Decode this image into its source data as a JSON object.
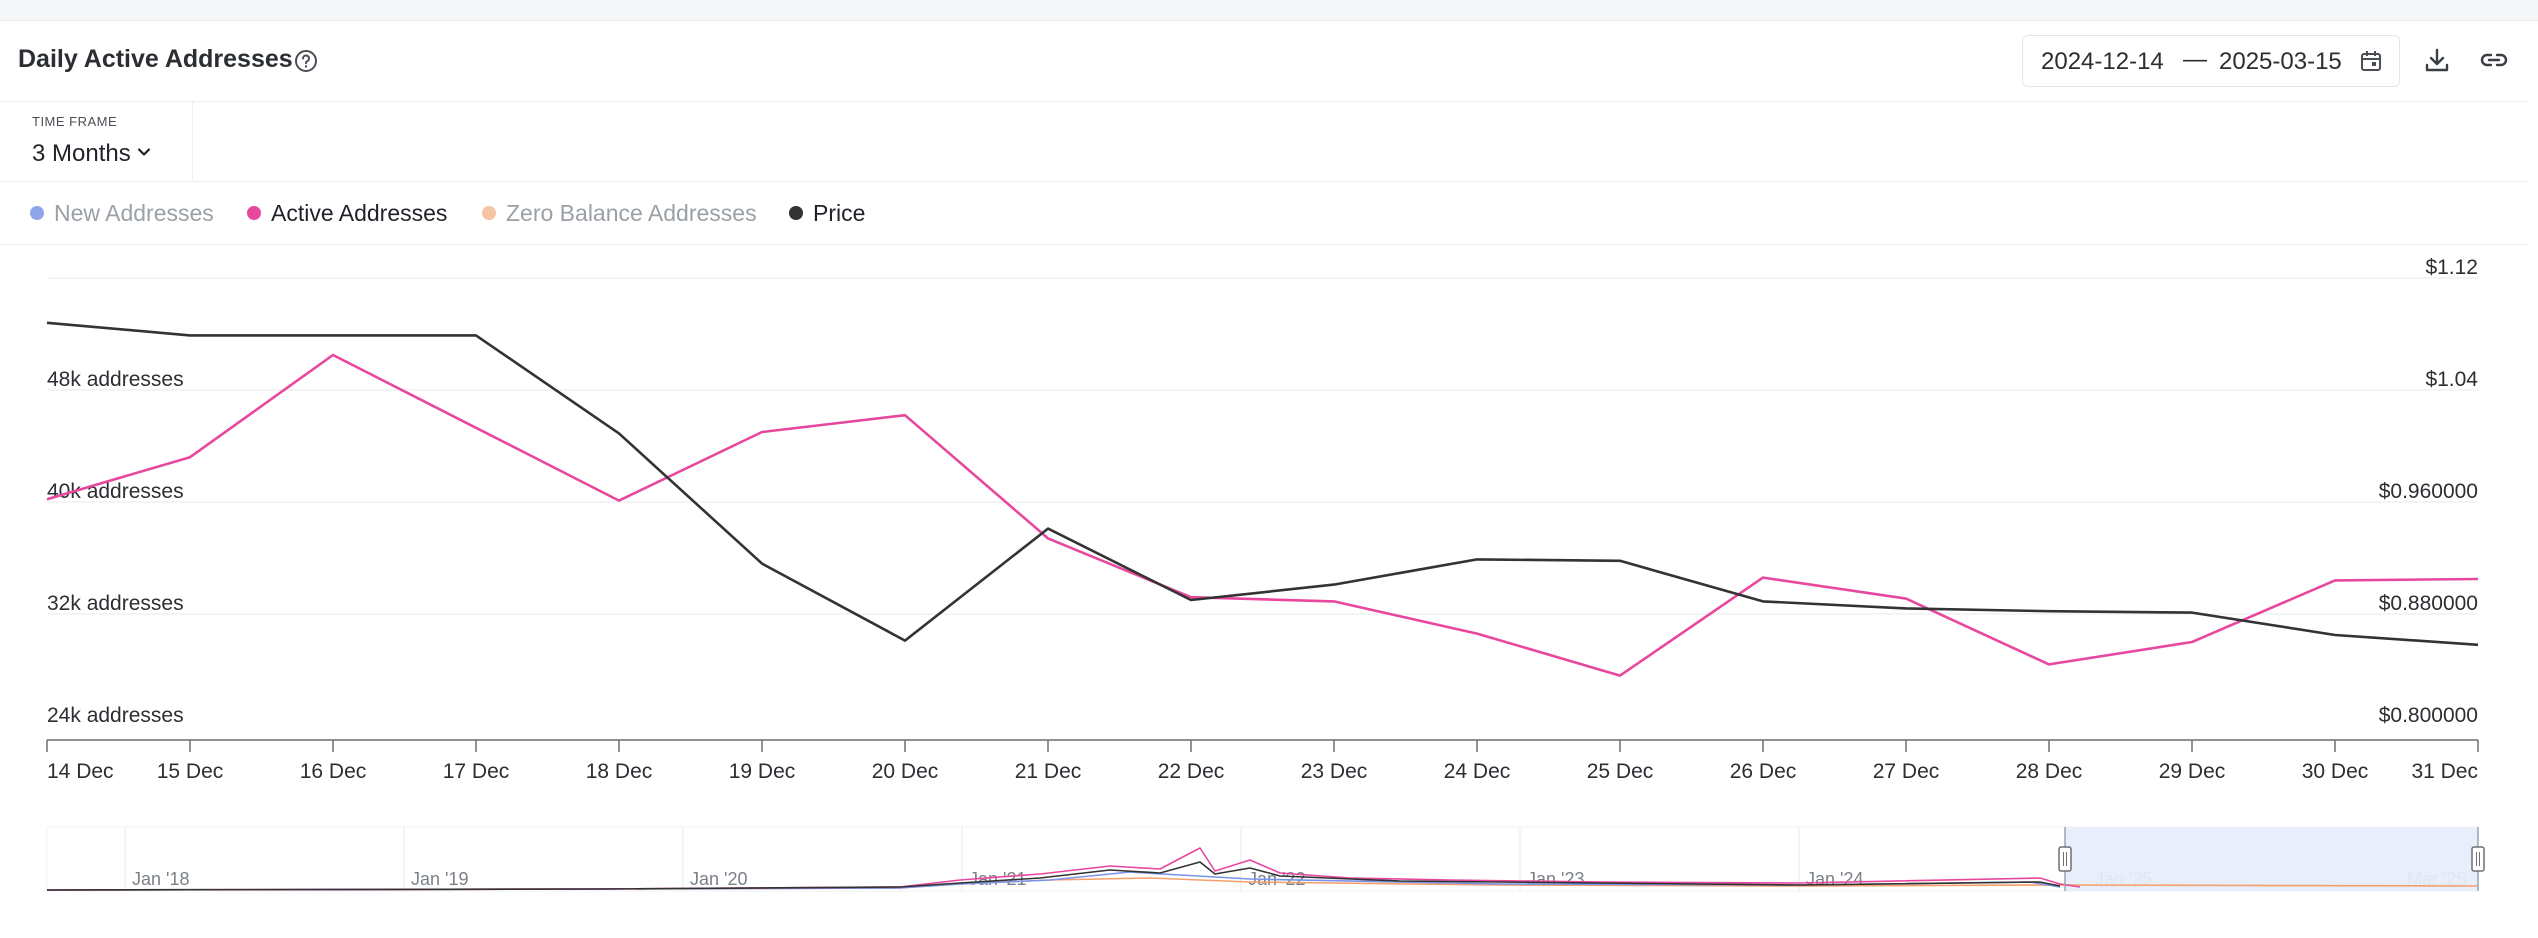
{
  "header": {
    "title": "Daily Active Addresses",
    "date_start": "2024-12-14",
    "date_separator": "—",
    "date_end": "2025-03-15"
  },
  "timeframe": {
    "label": "TIME FRAME",
    "selected": "3 Months"
  },
  "legend": [
    {
      "name": "New Addresses",
      "color": "#7b93e8",
      "active": false
    },
    {
      "name": "Active Addresses",
      "color": "#e8479e",
      "active": true
    },
    {
      "name": "Zero Balance Addresses",
      "color": "#f4b892",
      "active": false
    },
    {
      "name": "Price",
      "color": "#333333",
      "active": true
    }
  ],
  "chart_data": {
    "type": "line",
    "categories": [
      "14 Dec",
      "15 Dec",
      "16 Dec",
      "17 Dec",
      "18 Dec",
      "19 Dec",
      "20 Dec",
      "21 Dec",
      "22 Dec",
      "23 Dec",
      "24 Dec",
      "25 Dec",
      "26 Dec",
      "27 Dec",
      "28 Dec",
      "29 Dec",
      "30 Dec",
      "31 Dec"
    ],
    "left_axis": {
      "ticks": [
        24000,
        32000,
        40000,
        48000
      ],
      "tick_labels": [
        "24k addresses",
        "32k addresses",
        "40k addresses",
        "48k addresses"
      ],
      "range": [
        24000,
        56000
      ]
    },
    "right_axis": {
      "ticks": [
        0.8,
        0.88,
        0.96,
        1.04,
        1.12
      ],
      "tick_labels": [
        "$0.800000",
        "$0.880000",
        "$0.960000",
        "$1.04",
        "$1.12"
      ],
      "range": [
        0.8,
        1.12
      ]
    },
    "grid": true,
    "series": [
      {
        "name": "Active Addresses",
        "axis": "left",
        "color": "#e8479e",
        "values": [
          40200,
          43200,
          50500,
          45300,
          40100,
          45000,
          46200,
          37400,
          33200,
          32900,
          30600,
          27600,
          34600,
          33100,
          28400,
          30000,
          34400,
          34500
        ]
      },
      {
        "name": "Price",
        "axis": "right",
        "color": "#333333",
        "values": [
          1.088,
          1.079,
          1.079,
          1.079,
          1.009,
          0.916,
          0.861,
          0.941,
          0.89,
          0.901,
          0.919,
          0.918,
          0.889,
          0.884,
          0.882,
          0.881,
          0.865,
          0.858
        ]
      }
    ],
    "navigator": {
      "labels": [
        "Jan '18",
        "Jan '19",
        "Jan '20",
        "Jan '21",
        "Jan '22",
        "Jan '23",
        "Jan '24",
        "Jan '25",
        "Mar '25"
      ]
    }
  }
}
